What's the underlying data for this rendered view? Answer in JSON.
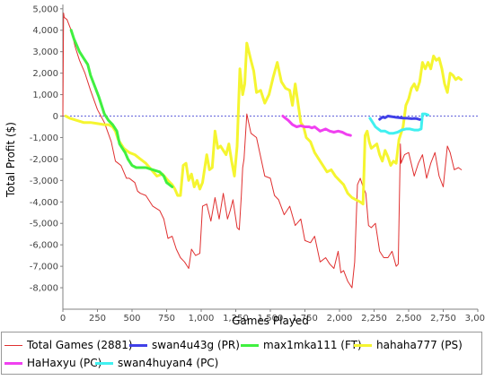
{
  "chart_data": {
    "type": "line",
    "title": "",
    "xlabel": "Games Played",
    "ylabel": "Total Profit ($)",
    "xlim": [
      0,
      3000
    ],
    "ylim": [
      -9000,
      5200
    ],
    "x_ticks": [
      "0",
      "250",
      "500",
      "750",
      "1,000",
      "1,250",
      "1,500",
      "1,750",
      "2,000",
      "2,250",
      "2,500",
      "2,750",
      "3,000"
    ],
    "y_ticks": [
      "5,000",
      "4,000",
      "3,000",
      "2,000",
      "1,000",
      "0",
      "-1,000",
      "-2,000",
      "-3,000",
      "-4,000",
      "-5,000",
      "-6,000",
      "-7,000",
      "-8,000"
    ],
    "grid": false,
    "zero_line": true,
    "legend_position": "bottom",
    "series": [
      {
        "name": "Total Games (2881)",
        "color": "#e03030",
        "x": [
          0,
          5,
          10,
          30,
          60,
          90,
          120,
          160,
          200,
          250,
          300,
          350,
          380,
          400,
          420,
          440,
          460,
          480,
          500,
          520,
          540,
          560,
          600,
          650,
          700,
          730,
          760,
          790,
          820,
          850,
          880,
          900,
          910,
          930,
          960,
          990,
          1010,
          1040,
          1070,
          1100,
          1130,
          1160,
          1190,
          1210,
          1230,
          1260,
          1275,
          1290,
          1300,
          1310,
          1330,
          1360,
          1400,
          1430,
          1460,
          1500,
          1530,
          1560,
          1600,
          1640,
          1680,
          1720,
          1750,
          1790,
          1820,
          1860,
          1900,
          1930,
          1960,
          1990,
          2010,
          2030,
          2060,
          2090,
          2110,
          2130,
          2150,
          2170,
          2190,
          2210,
          2230,
          2260,
          2290,
          2320,
          2350,
          2380,
          2410,
          2425,
          2440,
          2445,
          2470,
          2500,
          2540,
          2570,
          2600,
          2630,
          2660,
          2690,
          2720,
          2750,
          2780,
          2800,
          2830,
          2860,
          2881
        ],
        "y": [
          0,
          4800,
          4600,
          4500,
          4000,
          3200,
          2600,
          2000,
          1200,
          300,
          -300,
          -1200,
          -2100,
          -2200,
          -2300,
          -2600,
          -2900,
          -2900,
          -3000,
          -3100,
          -3500,
          -3600,
          -3700,
          -4200,
          -4400,
          -4800,
          -5700,
          -5600,
          -6200,
          -6600,
          -6800,
          -7000,
          -7100,
          -6200,
          -6500,
          -6400,
          -4200,
          -4100,
          -4900,
          -3800,
          -4800,
          -3600,
          -4800,
          -4400,
          -3900,
          -5200,
          -5300,
          -3700,
          -2400,
          -2000,
          100,
          -800,
          -1000,
          -1900,
          -2800,
          -2900,
          -3700,
          -3900,
          -4600,
          -4200,
          -5100,
          -4800,
          -5800,
          -5900,
          -5600,
          -6800,
          -6600,
          -6900,
          -7100,
          -6300,
          -7300,
          -7200,
          -7700,
          -8000,
          -6800,
          -3200,
          -2900,
          -3300,
          -3600,
          -5100,
          -5200,
          -5000,
          -6300,
          -6600,
          -6600,
          -6300,
          -7000,
          -6900,
          -1300,
          -2200,
          -1800,
          -1700,
          -2800,
          -2200,
          -1800,
          -2900,
          -2200,
          -1700,
          -2800,
          -3300,
          -1400,
          -1700,
          -2500,
          -2400,
          -2500
        ]
      },
      {
        "name": "swan4u43g (PR)",
        "color": "#4040e8",
        "x": [
          2290,
          2310,
          2330,
          2350,
          2370,
          2400,
          2430,
          2460,
          2490,
          2520,
          2550,
          2580
        ],
        "y": [
          -150,
          -50,
          -80,
          0,
          -20,
          -50,
          -70,
          -90,
          -100,
          -120,
          -110,
          -160
        ]
      },
      {
        "name": "max1mka111 (FT)",
        "color": "#40f040",
        "x": [
          60,
          80,
          100,
          120,
          150,
          180,
          200,
          230,
          260,
          300,
          330,
          360,
          390,
          410,
          430,
          450,
          470,
          500,
          530,
          560,
          600,
          650,
          700,
          730,
          750,
          770,
          790
        ],
        "y": [
          4000,
          3600,
          3300,
          3000,
          2700,
          2400,
          1900,
          1400,
          900,
          100,
          -200,
          -400,
          -700,
          -1300,
          -1500,
          -1700,
          -2000,
          -2300,
          -2400,
          -2400,
          -2400,
          -2500,
          -2600,
          -2800,
          -3100,
          -3200,
          -3300
        ]
      },
      {
        "name": "hahaha777 (PS)",
        "color": "#f5f530",
        "x": [
          20,
          50,
          100,
          150,
          200,
          250,
          300,
          330,
          360,
          380,
          400,
          440,
          480,
          520,
          560,
          600,
          640,
          680,
          720,
          760,
          790,
          810,
          830,
          850,
          870,
          890,
          910,
          930,
          950,
          970,
          990,
          1010,
          1040,
          1060,
          1080,
          1100,
          1120,
          1140,
          1160,
          1180,
          1200,
          1220,
          1240,
          1260,
          1280,
          1300,
          1315,
          1330,
          1345,
          1360,
          1380,
          1400,
          1430,
          1460,
          1490,
          1520,
          1550,
          1580,
          1610,
          1640,
          1660,
          1680,
          1700,
          1720,
          1740,
          1760,
          1790,
          1820,
          1850,
          1880,
          1910,
          1940,
          1970,
          2000,
          2030,
          2060,
          2090,
          2120,
          2150,
          2170,
          2185,
          2200,
          2215,
          2230,
          2250,
          2270,
          2290,
          2310,
          2330,
          2350,
          2370,
          2390,
          2410,
          2430,
          2445,
          2460,
          2480,
          2500,
          2520,
          2540,
          2560,
          2580,
          2600,
          2620,
          2640,
          2660,
          2680,
          2700,
          2720,
          2740,
          2760,
          2780,
          2800,
          2820,
          2840,
          2860,
          2880
        ],
        "y": [
          0,
          -100,
          -200,
          -300,
          -300,
          -350,
          -400,
          -400,
          -500,
          -700,
          -1100,
          -1500,
          -1700,
          -1800,
          -2000,
          -2200,
          -2500,
          -2800,
          -2700,
          -3000,
          -3200,
          -3400,
          -3700,
          -3700,
          -2300,
          -2200,
          -3000,
          -2700,
          -3300,
          -3000,
          -3400,
          -3100,
          -1800,
          -2500,
          -2400,
          -700,
          -1500,
          -1400,
          -1600,
          -1800,
          -1300,
          -2100,
          -2800,
          -1400,
          2200,
          1000,
          1500,
          3400,
          3000,
          2600,
          2100,
          1100,
          1200,
          600,
          1000,
          1800,
          2500,
          1600,
          1300,
          1200,
          500,
          1500,
          600,
          -300,
          -500,
          -1000,
          -1200,
          -1700,
          -2000,
          -2300,
          -2600,
          -2500,
          -2800,
          -3000,
          -3200,
          -3600,
          -3800,
          -3900,
          -4000,
          -4100,
          -900,
          -700,
          -1200,
          -1500,
          -1400,
          -1300,
          -1800,
          -2100,
          -1600,
          -1900,
          -2300,
          -2100,
          -2200,
          -1100,
          -800,
          -500,
          500,
          800,
          1300,
          1500,
          1200,
          1600,
          2500,
          2200,
          2500,
          2200,
          2800,
          2600,
          2700,
          2200,
          1500,
          1100,
          2000,
          1900,
          1700,
          1800,
          1700
        ]
      },
      {
        "name": "HaHaxyu (PC)",
        "color": "#f040f0",
        "x": [
          1590,
          1610,
          1630,
          1660,
          1690,
          1720,
          1750,
          1780,
          1800,
          1820,
          1840,
          1860,
          1880,
          1900,
          1930,
          1960,
          1990,
          2020,
          2050,
          2080
        ],
        "y": [
          0,
          -100,
          -200,
          -400,
          -500,
          -450,
          -500,
          -500,
          -550,
          -500,
          -600,
          -700,
          -650,
          -600,
          -700,
          -750,
          -700,
          -750,
          -850,
          -900
        ]
      },
      {
        "name": "swan4huyan4 (PC)",
        "color": "#40f0f0",
        "x": [
          2220,
          2240,
          2260,
          2280,
          2300,
          2330,
          2360,
          2390,
          2420,
          2450,
          2480,
          2510,
          2540,
          2570,
          2590,
          2600,
          2620,
          2640
        ],
        "y": [
          -100,
          -300,
          -500,
          -600,
          -700,
          -700,
          -800,
          -800,
          -750,
          -650,
          -600,
          -600,
          -650,
          -650,
          -600,
          100,
          100,
          50
        ]
      }
    ]
  }
}
